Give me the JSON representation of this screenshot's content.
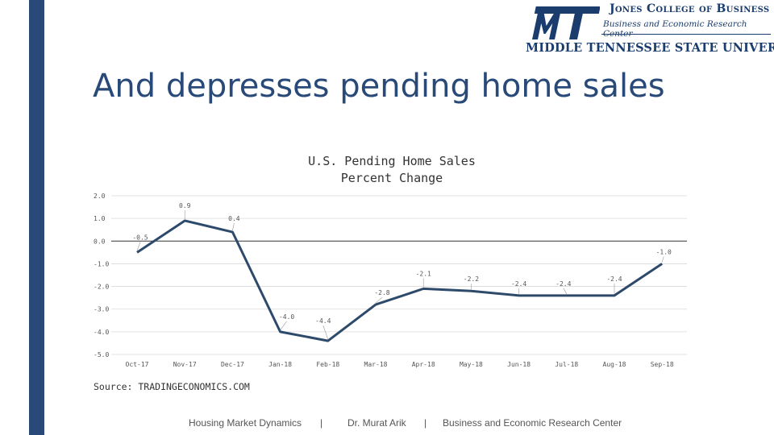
{
  "slide": {
    "title": "And depresses pending home sales",
    "source": "Source: TRADINGECONOMICS.COM"
  },
  "logo": {
    "school": "Jones College of Business",
    "center": "Business and Economic Research Center",
    "university": "MIDDLE TENNESSEE STATE UNIVERSITY",
    "monogram": "MT"
  },
  "footer": {
    "left": "Housing Market Dynamics",
    "sep1": "|",
    "middle": "Dr. Murat Arik",
    "sep2": "|",
    "right": "Business and Economic Research Center"
  },
  "colors": {
    "accent": "#294a78",
    "line": "#2e4a6b",
    "grid": "#d9d9d9"
  },
  "chart_data": {
    "type": "line",
    "title_lines": [
      "U.S. Pending Home Sales",
      "Percent Change"
    ],
    "categories": [
      "Oct-17",
      "Nov-17",
      "Dec-17",
      "Jan-18",
      "Feb-18",
      "Mar-18",
      "Apr-18",
      "May-18",
      "Jun-18",
      "Jul-18",
      "Aug-18",
      "Sep-18"
    ],
    "series": [
      {
        "values": [
          -0.5,
          0.9,
          0.4,
          -4.0,
          -4.4,
          -2.8,
          -2.1,
          -2.2,
          -2.4,
          -2.4,
          -2.4,
          -1.0
        ]
      }
    ],
    "data_labels": [
      "-0.5",
      "0.9",
      "0.4",
      "-4.0",
      "-4.4",
      "-2.8",
      "-2.1",
      "-2.2",
      "-2.4",
      "-2.4",
      "-2.4",
      "-1.0"
    ],
    "yticks": [
      "2.0",
      "1.0",
      "0.0",
      "-1.0",
      "-2.0",
      "-3.0",
      "-4.0",
      "-5.0"
    ],
    "ylim": [
      -5,
      2
    ],
    "grid": true
  }
}
